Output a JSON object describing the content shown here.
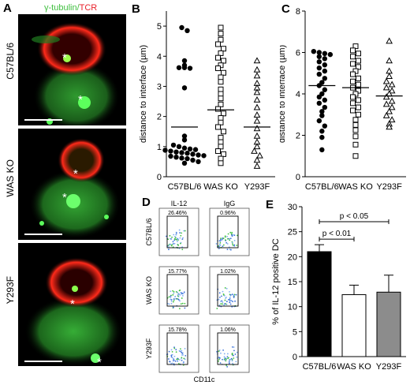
{
  "panel_a": {
    "letter": "A",
    "title_gt": "γ-tubulin",
    "title_sep": "/",
    "title_tcr": "TCR",
    "colors": {
      "gt": "#3fbf3f",
      "tcr": "#e8202a"
    },
    "rows": [
      {
        "label": "C57BL/6"
      },
      {
        "label": "WAS KO"
      },
      {
        "label": "Y293F"
      }
    ],
    "asterisk": "*"
  },
  "chart_data": [
    {
      "id": "B",
      "type": "scatter",
      "letter": "B",
      "ylabel": "distance to interface (µm)",
      "ylim": [
        0,
        5.5
      ],
      "yticks": [
        "0",
        "1",
        "2",
        "3",
        "4",
        "5"
      ],
      "categories": [
        "C57BL/6",
        "WAS KO",
        "Y293F"
      ],
      "markers": [
        "circle-filled",
        "square-open",
        "triangle-open"
      ],
      "means": [
        1.65,
        2.22,
        1.65
      ],
      "values": [
        [
          4.95,
          4.85,
          3.85,
          3.7,
          3.62,
          3.62,
          3.6,
          2.95,
          1.35,
          1.22,
          1.05,
          1.0,
          0.95,
          0.92,
          0.9,
          0.88,
          0.85,
          0.82,
          0.8,
          0.78,
          0.75,
          0.72,
          0.7,
          0.68,
          0.65,
          0.62,
          0.6,
          0.55,
          0.5,
          0.45
        ],
        [
          4.95,
          4.75,
          4.55,
          4.4,
          4.25,
          4.1,
          3.95,
          3.85,
          3.7,
          3.6,
          3.45,
          3.3,
          3.15,
          2.9,
          2.75,
          2.6,
          2.4,
          2.25,
          2.1,
          1.95,
          1.8,
          1.65,
          1.5,
          1.3,
          1.15,
          1.0,
          0.85,
          0.75,
          0.6,
          0.45
        ],
        [
          3.85,
          3.55,
          3.35,
          3.1,
          2.95,
          2.8,
          2.55,
          2.3,
          2.05,
          1.85,
          1.6,
          1.35,
          1.15,
          1.0,
          0.85,
          0.7,
          0.55,
          0.35
        ]
      ]
    },
    {
      "id": "C",
      "type": "scatter",
      "letter": "C",
      "ylabel": "distance to interface (µm)",
      "ylim": [
        0,
        8
      ],
      "yticks": [
        "0",
        "2",
        "4",
        "6",
        "8"
      ],
      "categories": [
        "C57BL/6",
        "WAS KO",
        "Y293F"
      ],
      "markers": [
        "circle-filled",
        "square-open",
        "triangle-open"
      ],
      "means": [
        4.4,
        4.3,
        3.9
      ],
      "values": [
        [
          6.05,
          6.0,
          5.95,
          5.9,
          5.8,
          5.7,
          5.55,
          5.4,
          5.25,
          5.1,
          4.95,
          4.75,
          4.55,
          4.4,
          4.2,
          4.0,
          3.85,
          3.7,
          3.55,
          3.35,
          3.15,
          2.95,
          2.7,
          2.45,
          2.2,
          1.9,
          1.3
        ],
        [
          6.3,
          6.1,
          5.95,
          5.8,
          5.6,
          5.45,
          5.3,
          5.1,
          4.95,
          4.75,
          4.6,
          4.45,
          4.3,
          4.15,
          4.0,
          3.85,
          3.7,
          3.55,
          3.35,
          3.2,
          3.0,
          2.75,
          2.5,
          2.25,
          1.95,
          1.55,
          1.0
        ],
        [
          6.55,
          5.6,
          5.1,
          4.85,
          4.6,
          4.45,
          4.3,
          4.15,
          4.0,
          3.85,
          3.65,
          3.5,
          3.35,
          3.15,
          2.95,
          2.75,
          2.55,
          2.4
        ]
      ]
    },
    {
      "id": "E",
      "type": "bar",
      "letter": "E",
      "ylabel": "% of IL-12 positive DC",
      "ylim": [
        0,
        30
      ],
      "yticks": [
        "0",
        "5",
        "10",
        "15",
        "20",
        "25",
        "30"
      ],
      "categories": [
        "C57BL/6",
        "WAS KO",
        "Y293F"
      ],
      "values": [
        21.0,
        12.4,
        12.9
      ],
      "errors": [
        1.4,
        1.9,
        3.4
      ],
      "colors": [
        "#000000",
        "#ffffff",
        "#8c8c8c"
      ],
      "annotations": [
        {
          "text": "p < 0.01",
          "from": 0,
          "to": 1,
          "y": 23.5
        },
        {
          "text": "p < 0.05",
          "from": 0,
          "to": 2,
          "y": 27.0
        }
      ]
    }
  ],
  "panel_d": {
    "letter": "D",
    "col_labels": [
      "IL-12",
      "IgG"
    ],
    "row_labels": [
      "C57BL/6",
      "WAS KO",
      "Y293F"
    ],
    "percentages": [
      [
        "26.46%",
        "0.96%"
      ],
      [
        "15.77%",
        "1.02%"
      ],
      [
        "15.78%",
        "1.06%"
      ]
    ],
    "xlabel": "CD11c"
  }
}
